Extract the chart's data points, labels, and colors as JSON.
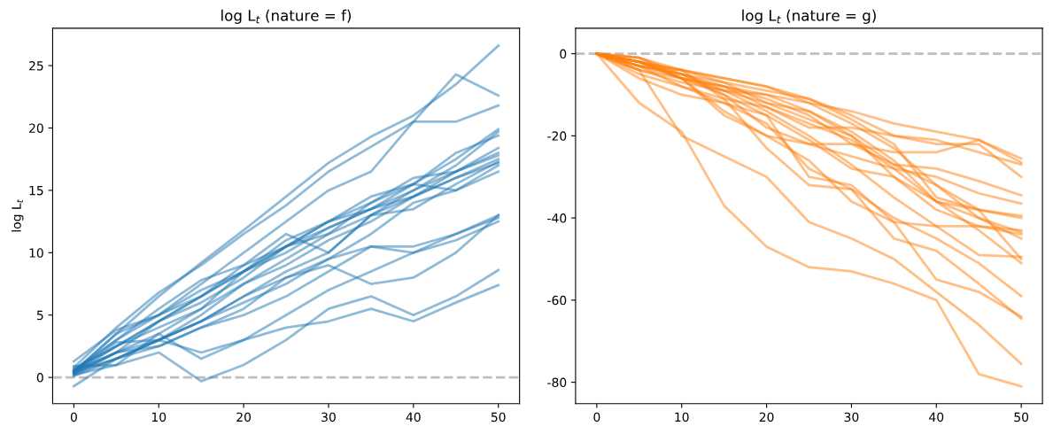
{
  "chart_data": [
    {
      "type": "line",
      "title": "log L$_{t}$ (nature = f)",
      "ylabel": "log L$_{t}$",
      "x": [
        0,
        5,
        10,
        15,
        20,
        25,
        30,
        35,
        40,
        45,
        50
      ],
      "xlim": [
        -2.5,
        52.5
      ],
      "xticks": [
        0,
        10,
        20,
        30,
        40,
        50
      ],
      "ylim": [
        -2.1,
        28.0
      ],
      "yticks": [
        0,
        5,
        10,
        15,
        20,
        25
      ],
      "grid": false,
      "marker": "none",
      "line_style": "solid",
      "ref_lines": [
        {
          "axis": "y",
          "value": 0,
          "color": "#bfbfbf",
          "line_style": "dashed"
        }
      ],
      "series": [
        {
          "color": "#1f77b4",
          "values": [
            0.5,
            3.5,
            6.5,
            9.2,
            11.8,
            14.5,
            17.2,
            19.3,
            21,
            23.5,
            26.6
          ]
        },
        {
          "color": "#1f77b4",
          "values": [
            0.8,
            4.0,
            6.8,
            9.0,
            11.5,
            13.8,
            16.5,
            18.5,
            20.5,
            24.3,
            22.6
          ]
        },
        {
          "color": "#1f77b4",
          "values": [
            1.3,
            3.8,
            5.0,
            7.5,
            10.0,
            12.5,
            15.0,
            16.5,
            20.5,
            20.5,
            21.8
          ]
        },
        {
          "color": "#1f77b4",
          "values": [
            0.5,
            3.0,
            5.5,
            7.8,
            9.0,
            10.5,
            12.5,
            14.5,
            15.5,
            17.5,
            19.9
          ]
        },
        {
          "color": "#1f77b4",
          "values": [
            0.3,
            2.5,
            4.5,
            6.5,
            8.5,
            10.5,
            12.0,
            13.5,
            15.0,
            17.0,
            19.7
          ]
        },
        {
          "color": "#1f77b4",
          "values": [
            0.6,
            3.0,
            5.0,
            6.5,
            8.5,
            10.0,
            12.0,
            13.5,
            15.5,
            18.0,
            19.4
          ]
        },
        {
          "color": "#1f77b4",
          "values": [
            0.2,
            2.0,
            3.5,
            5.5,
            8.5,
            11.0,
            12.5,
            14.0,
            16.0,
            16.5,
            18.4
          ]
        },
        {
          "color": "#1f77b4",
          "values": [
            0.7,
            2.5,
            4.0,
            5.5,
            7.5,
            9.5,
            11.5,
            13.0,
            15.0,
            16.5,
            18.0
          ]
        },
        {
          "color": "#1f77b4",
          "values": [
            0.4,
            2.8,
            3.0,
            5.0,
            7.5,
            9.0,
            11.0,
            12.5,
            14.5,
            16.0,
            17.5
          ]
        },
        {
          "color": "#1f77b4",
          "values": [
            0.5,
            2.0,
            4.5,
            6.5,
            9.0,
            11.5,
            10.0,
            13.0,
            13.5,
            15.5,
            17.3
          ]
        },
        {
          "color": "#1f77b4",
          "values": [
            -0.7,
            1.5,
            3.0,
            4.5,
            6.5,
            8.5,
            10.0,
            13.0,
            14.5,
            16.0,
            17.2
          ]
        },
        {
          "color": "#1f77b4",
          "values": [
            0.3,
            1.5,
            3.0,
            2.0,
            3.0,
            5.0,
            7.0,
            8.5,
            10.0,
            11.5,
            13.0
          ]
        },
        {
          "color": "#1f77b4",
          "values": [
            0.5,
            2.0,
            2.5,
            4.0,
            5.0,
            6.5,
            8.5,
            10.5,
            10.5,
            11.5,
            12.8
          ]
        },
        {
          "color": "#1f77b4",
          "values": [
            0.1,
            1.5,
            2.5,
            4.0,
            5.5,
            8.0,
            9.5,
            10.5,
            10.0,
            11.0,
            12.5
          ]
        },
        {
          "color": "#1f77b4",
          "values": [
            0.9,
            1.0,
            2.0,
            -0.3,
            1.0,
            3.0,
            5.5,
            6.5,
            5.0,
            6.5,
            8.6
          ]
        },
        {
          "color": "#1f77b4",
          "values": [
            0.2,
            1.0,
            3.5,
            1.5,
            3.0,
            4.0,
            4.5,
            5.5,
            4.5,
            6.0,
            7.4
          ]
        },
        {
          "color": "#1f77b4",
          "values": [
            0.5,
            1.5,
            3.0,
            4.5,
            6.5,
            8.0,
            9.0,
            7.5,
            8.0,
            10.0,
            13.0
          ]
        },
        {
          "color": "#1f77b4",
          "values": [
            0.4,
            3.5,
            5.0,
            7.0,
            8.5,
            10.5,
            12.5,
            13.5,
            14.5,
            16.5,
            17.8
          ]
        },
        {
          "color": "#1f77b4",
          "values": [
            0.6,
            2.5,
            4.5,
            6.0,
            8.0,
            10.5,
            11.5,
            14.0,
            15.5,
            15.0,
            17.0
          ]
        },
        {
          "color": "#1f77b4",
          "values": [
            0.3,
            2.0,
            3.0,
            4.5,
            6.0,
            7.5,
            9.5,
            11.5,
            14.0,
            15.0,
            16.5
          ]
        }
      ]
    },
    {
      "type": "line",
      "title": "log L$_{t}$ (nature = g)",
      "x": [
        0,
        5,
        10,
        15,
        20,
        25,
        30,
        35,
        40,
        45,
        50
      ],
      "xlim": [
        -2.5,
        52.5
      ],
      "xticks": [
        0,
        10,
        20,
        30,
        40,
        50
      ],
      "ylim": [
        -85.2,
        6.2
      ],
      "yticks": [
        -80,
        -60,
        -40,
        -20,
        0
      ],
      "grid": false,
      "marker": "none",
      "line_style": "solid",
      "ref_lines": [
        {
          "axis": "y",
          "value": 0,
          "color": "#bfbfbf",
          "line_style": "dashed"
        }
      ],
      "series": [
        {
          "color": "#ff7f0e",
          "values": [
            0,
            -3,
            -5,
            -8,
            -10,
            -12,
            -14,
            -17,
            -19,
            -21,
            -25.5
          ]
        },
        {
          "color": "#ff7f0e",
          "values": [
            0,
            -2,
            -4,
            -6,
            -8,
            -11,
            -15,
            -20,
            -21,
            -24,
            -27
          ]
        },
        {
          "color": "#ff7f0e",
          "values": [
            0,
            -4,
            -6,
            -8,
            -13,
            -18,
            -18,
            -20,
            -22,
            -22,
            -30
          ]
        },
        {
          "color": "#ff7f0e",
          "values": [
            0,
            -3,
            -5,
            -9,
            -12,
            -14,
            -20,
            -27,
            -28,
            -31,
            -34.5
          ]
        },
        {
          "color": "#ff7f0e",
          "values": [
            0,
            -2,
            -6,
            -10,
            -18,
            -22,
            -25,
            -28,
            -30,
            -34,
            -36.5
          ]
        },
        {
          "color": "#ff7f0e",
          "values": [
            0,
            -1,
            -4,
            -7,
            -9,
            -11,
            -16,
            -22,
            -35,
            -38,
            -39.5
          ]
        },
        {
          "color": "#ff7f0e",
          "values": [
            0,
            -3,
            -8,
            -12,
            -15,
            -21,
            -28,
            -30,
            -36,
            -38,
            -40
          ]
        },
        {
          "color": "#ff7f0e",
          "values": [
            0,
            -4,
            -7,
            -9,
            -10,
            -14,
            -19,
            -26,
            -36,
            -40,
            -43.5
          ]
        },
        {
          "color": "#ff7f0e",
          "values": [
            0,
            -1,
            -5,
            -7,
            -12,
            -16,
            -20,
            -30,
            -38,
            -42,
            -44
          ]
        },
        {
          "color": "#ff7f0e",
          "values": [
            0,
            -2,
            -4,
            -6,
            -8,
            -12,
            -17,
            -23,
            -32,
            -40,
            -45
          ]
        },
        {
          "color": "#ff7f0e",
          "values": [
            0,
            -3,
            -6,
            -8,
            -11,
            -15,
            -22,
            -27,
            -32,
            -38,
            -50
          ]
        },
        {
          "color": "#ff7f0e",
          "values": [
            0,
            -5,
            -8,
            -11,
            -13,
            -17,
            -21,
            -28,
            -36,
            -43,
            -51
          ]
        },
        {
          "color": "#ff7f0e",
          "values": [
            0,
            -6,
            -10,
            -12,
            -17,
            -28,
            -33,
            -40,
            -45,
            -51,
            -59
          ]
        },
        {
          "color": "#ff7f0e",
          "values": [
            0,
            -2,
            -6,
            -15,
            -20,
            -26,
            -36,
            -41,
            -55,
            -58,
            -64
          ]
        },
        {
          "color": "#ff7f0e",
          "values": [
            0,
            -3,
            -4,
            -11,
            -23,
            -32,
            -33,
            -45,
            -48,
            -56,
            -64.5
          ]
        },
        {
          "color": "#ff7f0e",
          "values": [
            0,
            -4,
            -20,
            -25,
            -30,
            -41,
            -45,
            -50,
            -58,
            -66,
            -75.5
          ]
        },
        {
          "color": "#ff7f0e",
          "values": [
            0,
            -12,
            -19,
            -37,
            -47,
            -52,
            -53,
            -56,
            -60,
            -78,
            -81
          ]
        },
        {
          "color": "#ff7f0e",
          "values": [
            0,
            -2,
            -6,
            -14,
            -20,
            -22,
            -22,
            -24,
            -24,
            -21,
            -26.5
          ]
        },
        {
          "color": "#ff7f0e",
          "values": [
            0,
            -1,
            -6,
            -9,
            -14,
            -20,
            -27,
            -35,
            -42,
            -49,
            -49.5
          ]
        },
        {
          "color": "#ff7f0e",
          "values": [
            0,
            -2,
            -5,
            -10,
            -15,
            -30,
            -32,
            -41,
            -42,
            -42,
            -43
          ]
        }
      ]
    }
  ]
}
